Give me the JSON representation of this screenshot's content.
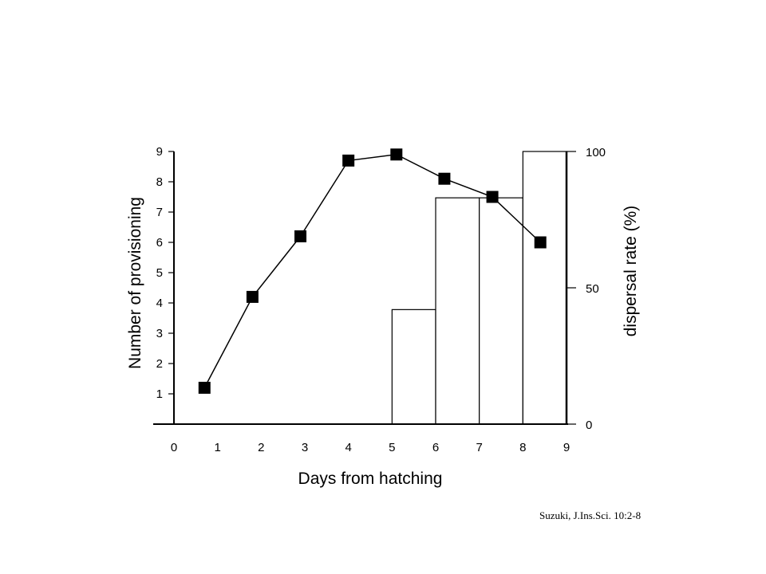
{
  "chart_data": {
    "type": "bar+line",
    "xlabel": "Days from hatching",
    "ylabel_left": "Number of provisioning",
    "ylabel_right": "dispersal rate (%)",
    "x_ticks": [
      "0",
      "1",
      "2",
      "3",
      "4",
      "5",
      "6",
      "7",
      "8",
      "9"
    ],
    "xlim": [
      0,
      9
    ],
    "left_ticks": [
      "1",
      "2",
      "3",
      "4",
      "5",
      "6",
      "7",
      "8",
      "9"
    ],
    "ylim_left": [
      0,
      9
    ],
    "right_ticks": [
      "0",
      "50",
      "100"
    ],
    "ylim_right": [
      0,
      100
    ],
    "line_series": {
      "x": [
        0.7,
        1.8,
        2.9,
        4.0,
        5.1,
        6.2,
        7.3,
        8.4
      ],
      "y": [
        1.2,
        4.2,
        6.2,
        8.7,
        8.9,
        8.1,
        7.5,
        6.0
      ]
    },
    "bars": [
      {
        "x0": 5,
        "x1": 6,
        "value": 42
      },
      {
        "x0": 6,
        "x1": 7,
        "value": 83
      },
      {
        "x0": 7,
        "x1": 8,
        "value": 83
      },
      {
        "x0": 8,
        "x1": 9,
        "value": 100
      }
    ],
    "grid": false,
    "legend": "none"
  },
  "citation": "Suzuki, J.Ins.Sci. 10:2-8"
}
